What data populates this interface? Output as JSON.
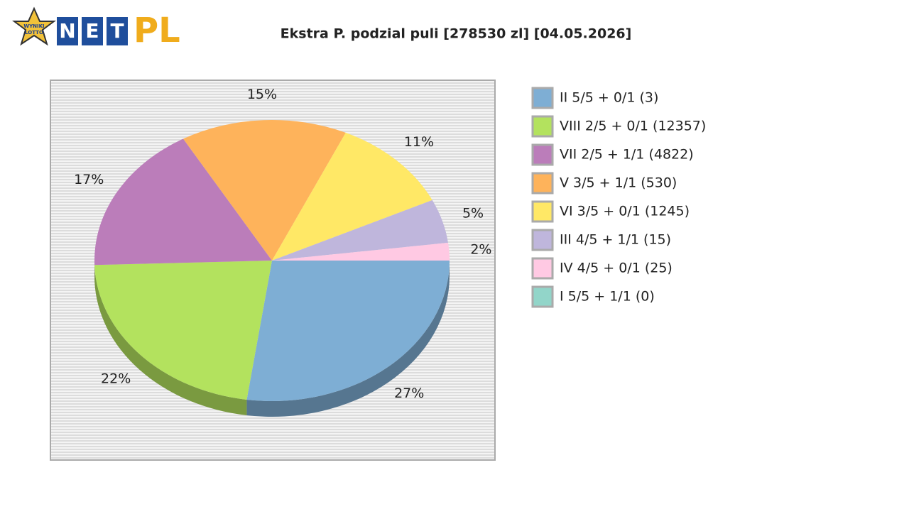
{
  "logo": {
    "badge_top": "WYNIKI",
    "badge_bottom": "LOTTO",
    "letters": [
      "N",
      "E",
      "T"
    ],
    "accent": "PL"
  },
  "chart_data": {
    "type": "pie",
    "title": "Ekstra P. podzial puli [278530 zl] [04.05.2026]",
    "categories": [
      "II 5/5 + 0/1 (3)",
      "VIII 2/5 + 0/1 (12357)",
      "VII 2/5 + 1/1 (4822)",
      "V 3/5 + 1/1 (530)",
      "VI 3/5 + 0/1 (1245)",
      "III 4/5 + 1/1 (15)",
      "IV 4/5 + 0/1 (25)",
      "I 5/5 + 1/1 (0)"
    ],
    "values": [
      27,
      22,
      17,
      15,
      11,
      5,
      2,
      0
    ],
    "value_labels": [
      "27%",
      "22%",
      "17%",
      "15%",
      "11%",
      "5%",
      "2%",
      null
    ],
    "colors": [
      "#7eaed4",
      "#b3e25e",
      "#bb7dba",
      "#feb35b",
      "#ffe866",
      "#bfb6dc",
      "#ffc9e3",
      "#92d5c9"
    ],
    "legend": "right"
  }
}
